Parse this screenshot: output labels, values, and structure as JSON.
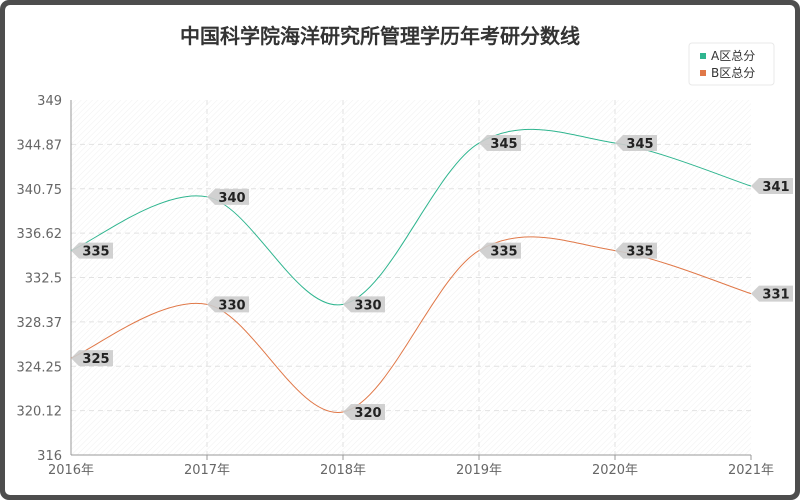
{
  "chart_data": {
    "type": "line",
    "title": "中国科学院海洋研究所管理学历年考研分数线",
    "xlabel": "",
    "ylabel": "",
    "categories": [
      "2016年",
      "2017年",
      "2018年",
      "2019年",
      "2020年",
      "2021年"
    ],
    "y_ticks": [
      "316",
      "320.12",
      "324.25",
      "328.37",
      "332.5",
      "336.62",
      "340.75",
      "344.87",
      "349"
    ],
    "ylim": [
      316,
      349
    ],
    "grid": true,
    "legend_position": "top-right",
    "series": [
      {
        "name": "A区总分",
        "values": [
          335,
          340,
          330,
          345,
          345,
          341
        ],
        "labels": [
          "335",
          "340",
          "330",
          "345",
          "345",
          "341"
        ],
        "color": "#2fb58f"
      },
      {
        "name": "B区总分",
        "values": [
          325,
          330,
          320,
          335,
          335,
          331
        ],
        "labels": [
          "325",
          "330",
          "320",
          "335",
          "335",
          "331"
        ],
        "color": "#e07848"
      }
    ]
  },
  "colors": {
    "frame": "#4d4d4d",
    "axis": "#999999",
    "grid": "#e6e6e6",
    "label_bg": "#cccccc",
    "text": "#333333"
  }
}
